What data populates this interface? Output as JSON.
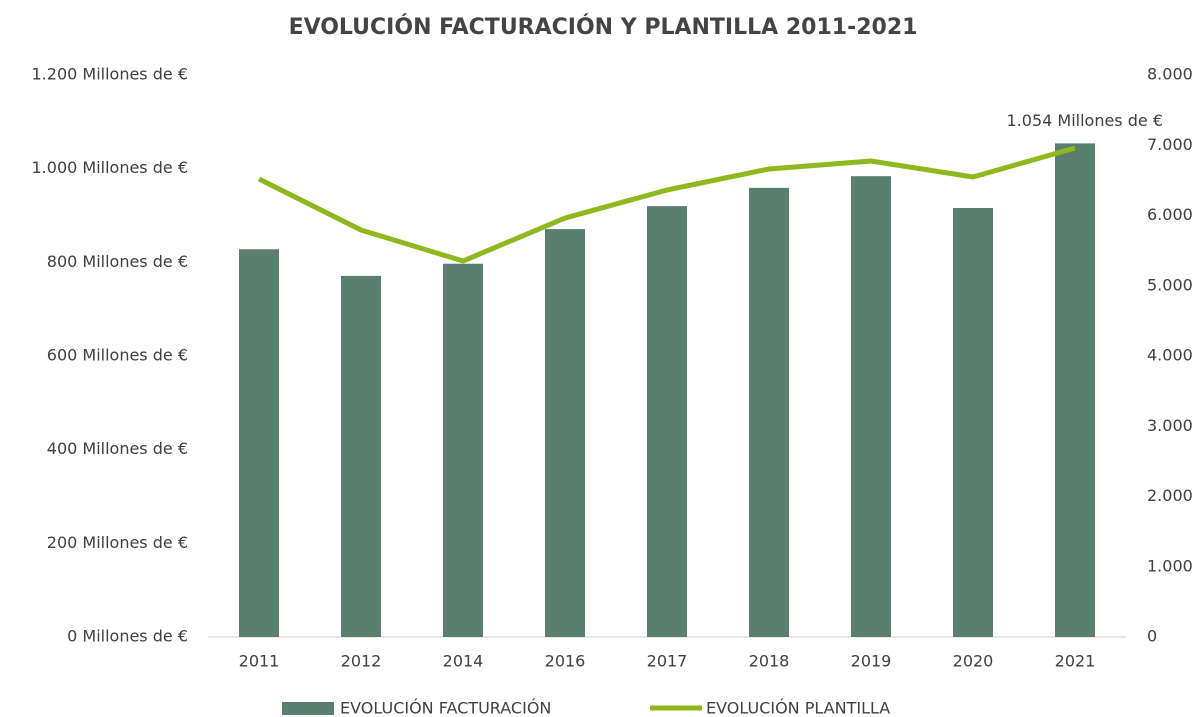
{
  "chart_data": {
    "type": "bar_line",
    "title": "EVOLUCIÓN FACTURACIÓN Y PLANTILLA 2011-2021",
    "categories": [
      "2011",
      "2012",
      "2014",
      "2016",
      "2017",
      "2018",
      "2019",
      "2020",
      "2021"
    ],
    "series": [
      {
        "name": "EVOLUCIÓN FACTURACIÓN",
        "type": "bar",
        "color": "#5b7f6f",
        "axis": "y",
        "values": [
          828,
          771,
          797,
          871,
          920,
          959,
          984,
          916,
          1054
        ],
        "value_labels": [
          null,
          null,
          null,
          null,
          null,
          null,
          null,
          null,
          "1.054 Millones de €"
        ]
      },
      {
        "name": "EVOLUCIÓN PLANTILLA",
        "type": "line",
        "color": "#8db81e",
        "axis": "y2",
        "values": [
          6520,
          5794,
          5352,
          5964,
          6363,
          6662,
          6776,
          6548,
          6961
        ]
      }
    ],
    "ylim": [
      0,
      1200
    ],
    "yticks": [
      {
        "value": 0,
        "label": "0 Millones de €"
      },
      {
        "value": 200,
        "label": "200 Millones de €"
      },
      {
        "value": 400,
        "label": "400 Millones de €"
      },
      {
        "value": 600,
        "label": "600 Millones de €"
      },
      {
        "value": 800,
        "label": "800 Millones de €"
      },
      {
        "value": 1000,
        "label": "1.000 Millones de €"
      },
      {
        "value": 1200,
        "label": "1.200 Millones de €"
      }
    ],
    "y2lim": [
      0,
      8000
    ],
    "y2ticks": [
      0,
      {
        "value": 1000,
        "label": "1.000"
      },
      {
        "value": 2000,
        "label": "2.000"
      },
      {
        "value": 3000,
        "label": "3.000"
      },
      {
        "value": 4000,
        "label": "4.000"
      },
      {
        "value": 5000,
        "label": "5.000"
      },
      {
        "value": 6000,
        "label": "6.000"
      },
      {
        "value": 7000,
        "label": "7.000"
      },
      {
        "value": 8000,
        "label": "8.000"
      }
    ],
    "grid": false,
    "legend": "bottom"
  }
}
